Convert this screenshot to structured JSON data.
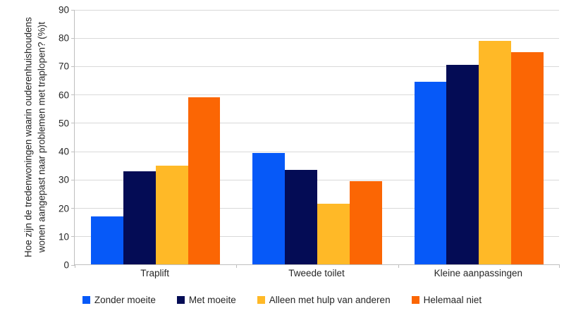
{
  "chart_data": {
    "type": "bar",
    "title": "",
    "xlabel": "",
    "ylabel": "Hoe zijn de tredenwoningen waarin ouderenhuishoudens wonen aangepast naar problemen met traplopen? (%)t",
    "categories": [
      "Traplift",
      "Tweede toilet",
      "Kleine aanpassingen"
    ],
    "series": [
      {
        "name": "Zonder moeite",
        "color": "#0659F8",
        "values": [
          17,
          39.5,
          64.5
        ]
      },
      {
        "name": "Met moeite",
        "color": "#040C55",
        "values": [
          33,
          33.5,
          70.5
        ]
      },
      {
        "name": "Alleen met hulp van anderen",
        "color": "#FFB927",
        "values": [
          35,
          21.5,
          79
        ]
      },
      {
        "name": "Helemaal niet",
        "color": "#FB6604",
        "values": [
          59,
          29.5,
          75
        ]
      }
    ],
    "ylim": [
      0,
      90
    ],
    "yticks": [
      0,
      10,
      20,
      30,
      40,
      50,
      60,
      70,
      80,
      90
    ],
    "grid": "horizontal",
    "legend_position": "bottom",
    "colors": {
      "gridline": "#D9D9D9",
      "axis": "#BFBFBF",
      "text": "#262626",
      "background": "#FFFFFF"
    }
  }
}
